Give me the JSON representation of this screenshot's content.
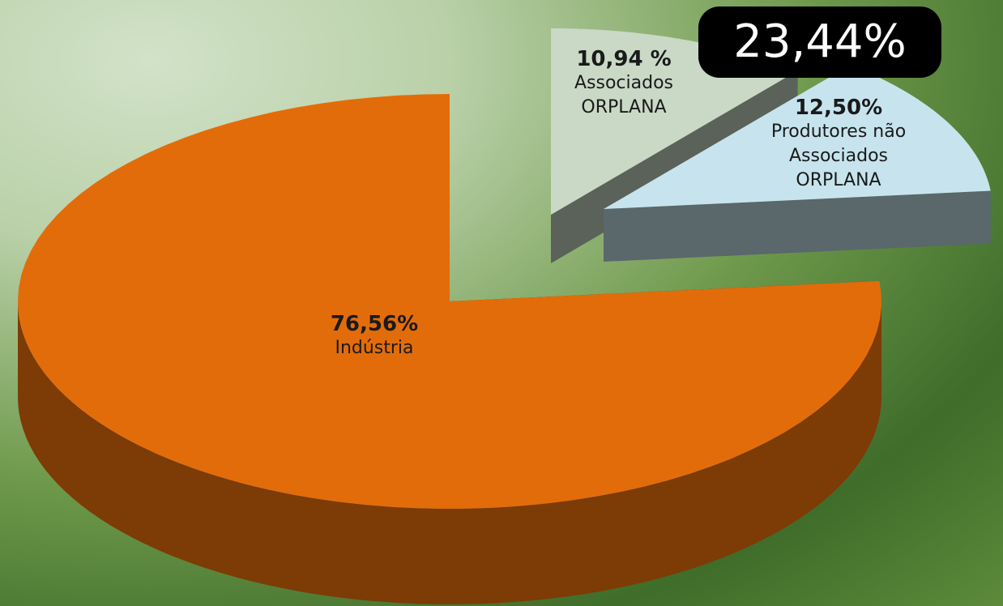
{
  "chart_data": {
    "type": "pie",
    "categories": [
      "Indústria",
      "Associados ORPLANA",
      "Produtores não Associados ORPLANA"
    ],
    "values": [
      76.56,
      10.94,
      12.5
    ],
    "value_labels": [
      "76,56%",
      "10,94 %",
      "12,50%"
    ],
    "colors": [
      "#e36c0a",
      "#c9d9c6",
      "#c7e4ee"
    ],
    "annotation": "23,44%"
  }
}
